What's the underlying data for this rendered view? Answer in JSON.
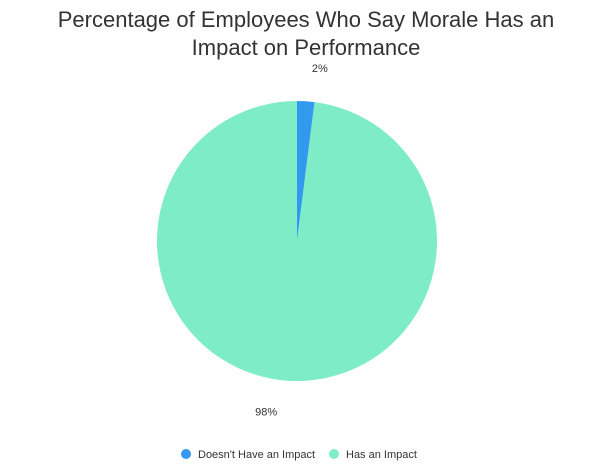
{
  "chart_data": {
    "type": "pie",
    "title": "Percentage of Employees Who Say Morale Has an Impact on Performance",
    "categories": [
      "Doesn't Have an Impact",
      "Has an Impact"
    ],
    "values": [
      2,
      98
    ],
    "value_labels": [
      "2%",
      "98%"
    ],
    "colors": [
      "#3399ee",
      "#7eecc6"
    ],
    "legend": "bottom"
  }
}
